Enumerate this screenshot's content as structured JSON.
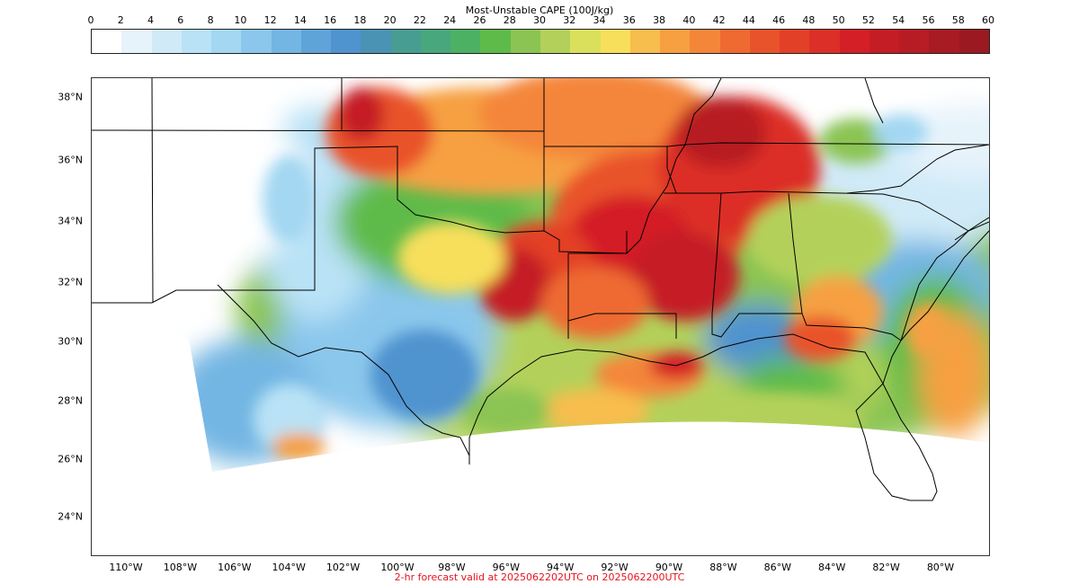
{
  "colorbar": {
    "title": "Most-Unstable CAPE (100J/kg)",
    "ticks": [
      "0",
      "2",
      "4",
      "6",
      "8",
      "10",
      "12",
      "14",
      "16",
      "18",
      "20",
      "22",
      "24",
      "26",
      "28",
      "30",
      "32",
      "34",
      "36",
      "38",
      "40",
      "42",
      "44",
      "46",
      "48",
      "50",
      "52",
      "54",
      "56",
      "58",
      "60"
    ],
    "colors": [
      "#ffffff",
      "#e6f3fb",
      "#d0eaf8",
      "#b9e2f6",
      "#a3d7f2",
      "#8bc7ec",
      "#73b6e3",
      "#5fa4d9",
      "#4f93cf",
      "#4a93b5",
      "#489d93",
      "#48a77c",
      "#4cb163",
      "#5fbb49",
      "#8bc453",
      "#b3d15a",
      "#dbe05c",
      "#f7df5b",
      "#f7bd4d",
      "#f6a042",
      "#f4863a",
      "#ee6a31",
      "#e9532b",
      "#e34028",
      "#dc2f27",
      "#d41f26",
      "#c51d25",
      "#b71c24",
      "#a91b22",
      "#9b1a21"
    ]
  },
  "map": {
    "lat_labels": [
      "38°N",
      "36°N",
      "34°N",
      "32°N",
      "30°N",
      "28°N",
      "26°N",
      "24°N"
    ],
    "lon_labels": [
      "110°W",
      "108°W",
      "106°W",
      "104°W",
      "102°W",
      "100°W",
      "98°W",
      "96°W",
      "94°W",
      "92°W",
      "90°W",
      "88°W",
      "86°W",
      "84°W",
      "82°W",
      "80°W"
    ]
  },
  "footer": "2-hr forecast valid at 2025062202UTC on 2025062200UTC"
}
